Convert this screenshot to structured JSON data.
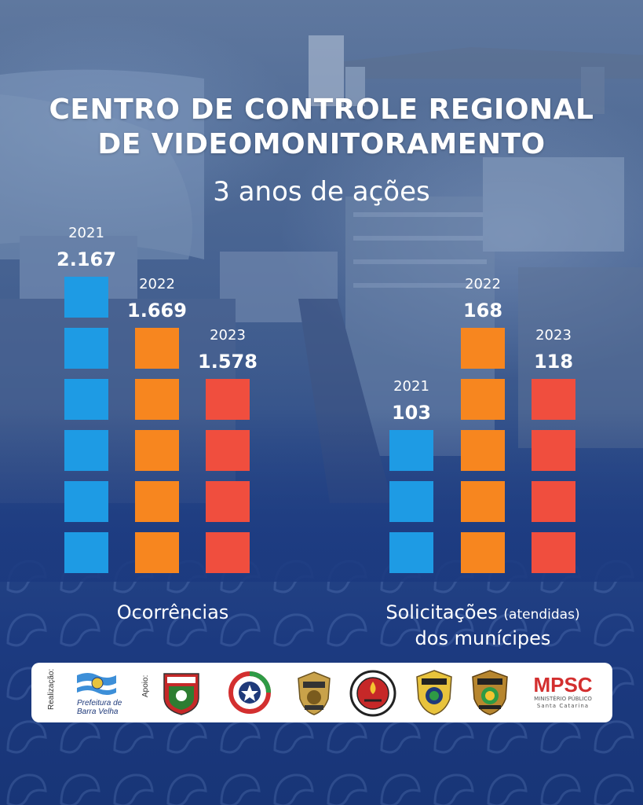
{
  "header": {
    "title_line1": "CENTRO DE CONTROLE REGIONAL",
    "title_line2": "DE VIDEOMONITORAMENTO",
    "subtitle": "3 anos de ações"
  },
  "chart_data": [
    {
      "type": "bar",
      "title": "Ocorrências",
      "categories": [
        "2021",
        "2022",
        "2023"
      ],
      "values": [
        2167,
        1669,
        1578
      ],
      "value_labels": [
        "2.167",
        "1.669",
        "1.578"
      ],
      "blocks": [
        6,
        5,
        4
      ],
      "colors": [
        "#1e9be4",
        "#f7861f",
        "#f04e3e"
      ]
    },
    {
      "type": "bar",
      "title": "Solicitações (atendidas) dos munícipes",
      "categories": [
        "2021",
        "2022",
        "2023"
      ],
      "values": [
        103,
        168,
        118
      ],
      "value_labels": [
        "103",
        "168",
        "118"
      ],
      "blocks": [
        3,
        5,
        4
      ],
      "colors": [
        "#1e9be4",
        "#f7861f",
        "#f04e3e"
      ]
    }
  ],
  "captions": {
    "left": "Ocorrências",
    "right_main": "Solicitações",
    "right_small": "(atendidas)",
    "right_line2": "dos munícipes"
  },
  "footer": {
    "realizacao_label": "Realização:",
    "apoio_label": "Apoio:",
    "prefeitura_line1": "Prefeitura de",
    "prefeitura_line2": "Barra Velha",
    "mpsc_logo": "MPSC",
    "mpsc_line1": "MINISTÉRIO PÚBLICO",
    "mpsc_line2": "Santa Catarina",
    "logos": [
      "seguranca-publica-seal",
      "sc-state-logo",
      "policia-civil-badge",
      "corpo-de-bombeiros-seal",
      "policia-rodoviaria-federal-badge",
      "policia-federal-badge",
      "mpsc-logo"
    ]
  }
}
